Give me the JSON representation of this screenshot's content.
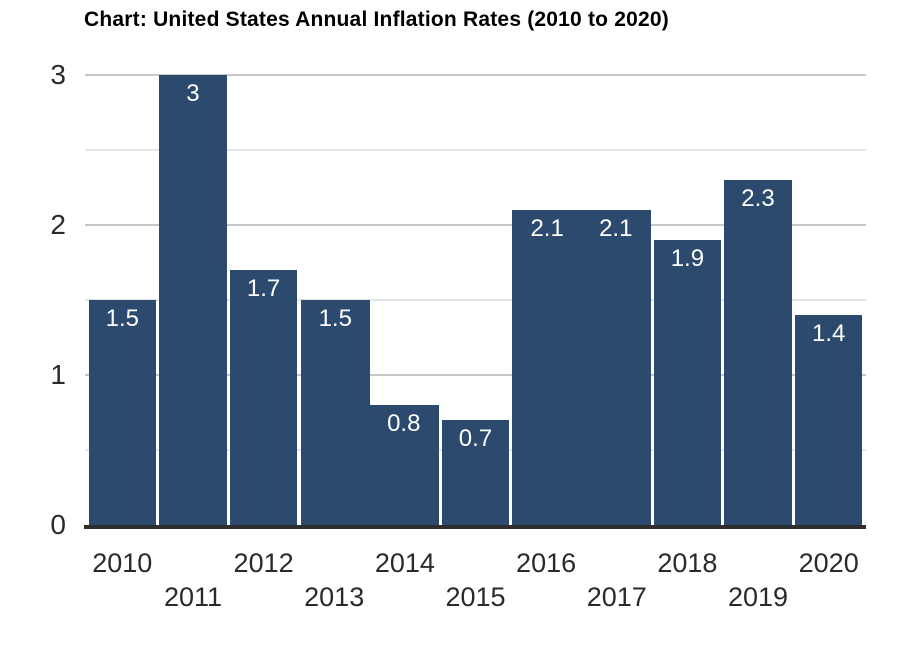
{
  "chart_data": {
    "type": "bar",
    "title": "Chart: United States Annual Inflation Rates (2010 to 2020)",
    "categories": [
      "2010",
      "2011",
      "2012",
      "2013",
      "2014",
      "2015",
      "2016",
      "2017",
      "2018",
      "2019",
      "2020"
    ],
    "values": [
      1.5,
      3,
      1.7,
      1.5,
      0.8,
      0.7,
      2.1,
      2.1,
      1.9,
      2.3,
      1.4
    ],
    "bar_value_labels": [
      "1.5",
      "3",
      "1.7",
      "1.5",
      "0.8",
      "0.7",
      "2.1",
      "2.1",
      "1.9",
      "2.3",
      "1.4"
    ],
    "xlabel": "",
    "ylabel": "",
    "ylim": [
      0,
      3
    ],
    "y_axis": {
      "tick_labels": [
        "0",
        "1",
        "2",
        "3"
      ],
      "gridline_interval": 0.5,
      "grid": "on"
    },
    "x_axis": {
      "label_layout": "staggered-two-rows",
      "even_years_row": "upper",
      "odd_years_row": "lower"
    },
    "legend": "none",
    "colors": {
      "bar": "#2b4a6e",
      "bar_label": "#ffffff",
      "title": "#000000",
      "axis_labels": "#2a2a2a",
      "gridline_major": "#c7c7c7",
      "gridline_minor": "#e5e5e5",
      "baseline": "#2e2e2e",
      "background": "#ffffff"
    }
  }
}
